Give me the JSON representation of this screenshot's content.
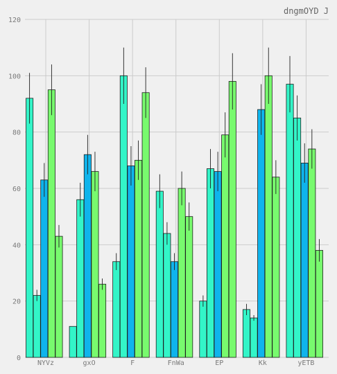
{
  "chart_data": {
    "type": "bar",
    "title": "dngmOYD J",
    "xlabel": "",
    "ylabel": "",
    "ylim": [
      0,
      120
    ],
    "yticks": [
      0,
      20,
      40,
      60,
      80,
      100,
      120
    ],
    "grid": true,
    "categories": [
      "NYVz",
      "gxO",
      "F",
      "FnWa",
      "EP",
      "Kk",
      "yETB"
    ],
    "series": [
      {
        "color": "#33f5c8",
        "values": [
          92,
          11,
          34,
          59,
          20,
          17,
          97
        ],
        "errors": [
          9,
          0,
          3,
          6,
          2,
          2,
          10
        ]
      },
      {
        "color": "#33f5c8",
        "values": [
          22,
          56,
          100,
          44,
          67,
          14,
          85
        ],
        "errors": [
          2,
          6,
          10,
          4,
          7,
          1,
          8
        ]
      },
      {
        "color": "#0fb4ec",
        "values": [
          63,
          72,
          68,
          34,
          66,
          88,
          69
        ],
        "errors": [
          6,
          7,
          7,
          3,
          7,
          9,
          7
        ]
      },
      {
        "color": "#78fa6e",
        "values": [
          95,
          66,
          70,
          60,
          79,
          100,
          74
        ],
        "errors": [
          9,
          7,
          7,
          6,
          8,
          10,
          7
        ]
      },
      {
        "color": "#78fa6e",
        "values": [
          43,
          26,
          94,
          50,
          98,
          64,
          38
        ],
        "errors": [
          4,
          2,
          9,
          5,
          10,
          6,
          4
        ]
      }
    ]
  }
}
